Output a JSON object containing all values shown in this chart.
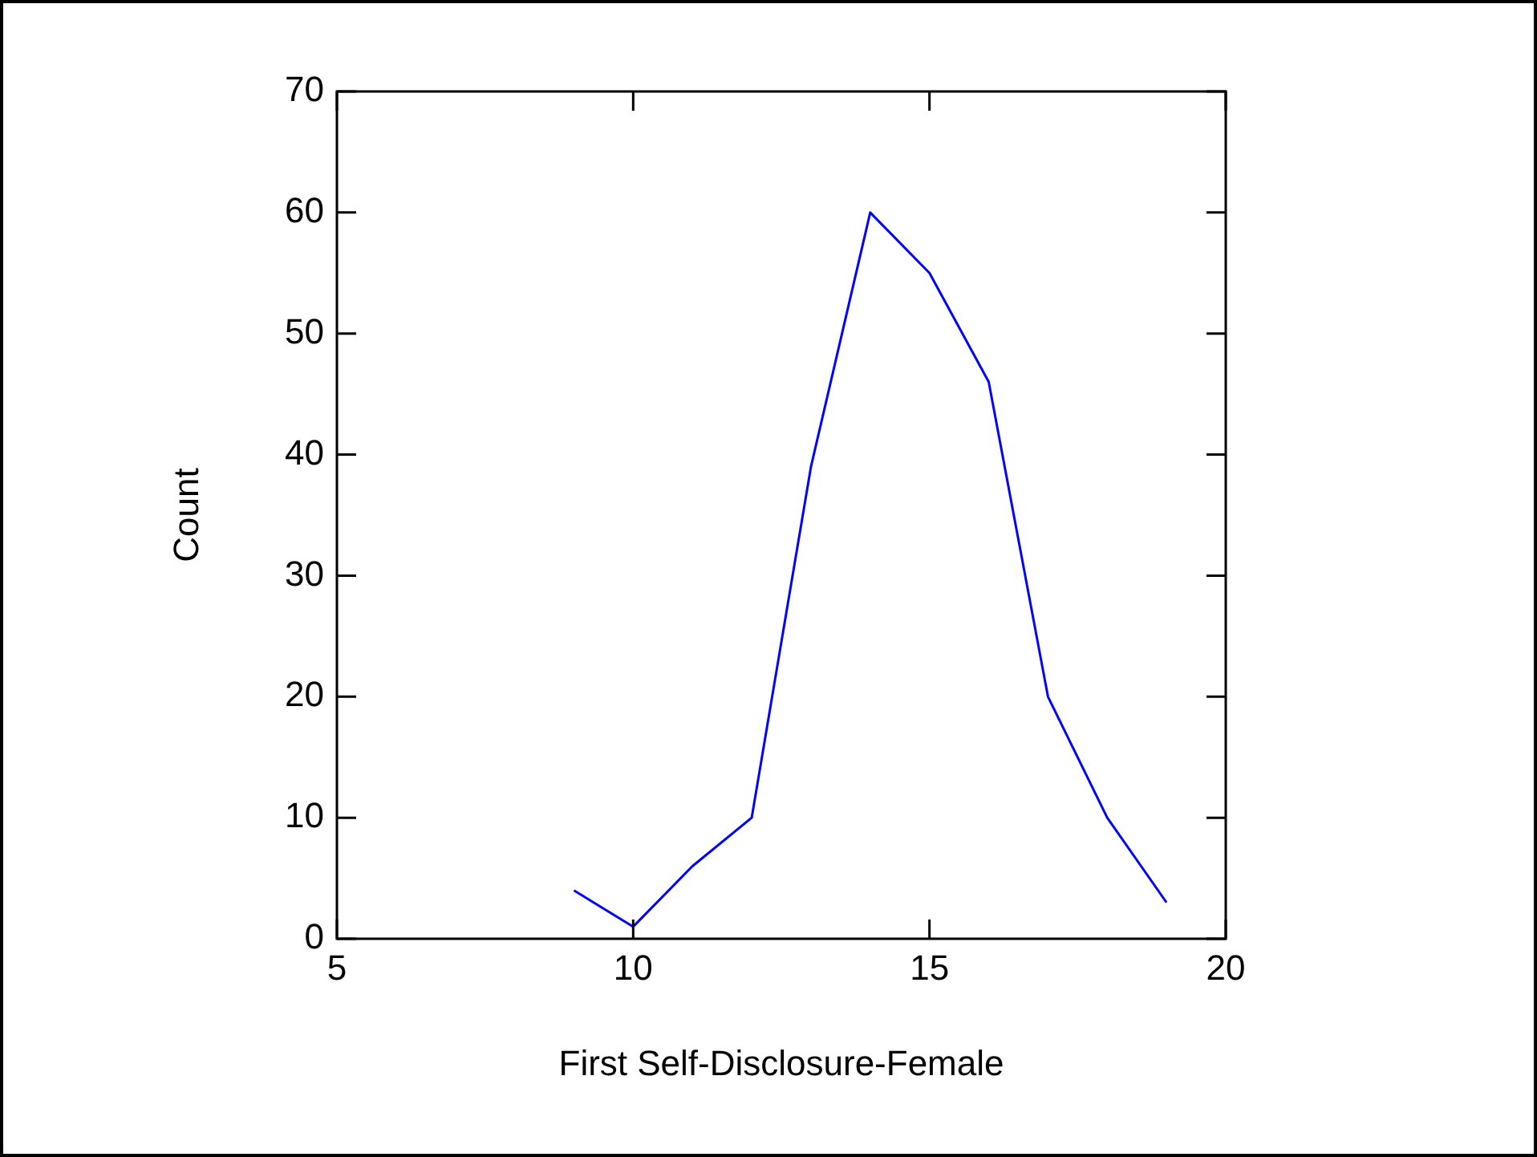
{
  "chart_data": {
    "type": "line",
    "xlabel": "First Self-Disclosure-Female",
    "ylabel": "Count",
    "x": [
      9,
      10,
      11,
      12,
      13,
      14,
      15,
      16,
      17,
      18,
      19
    ],
    "series": [
      {
        "color": "#0000ff",
        "values": [
          4,
          1,
          6,
          10,
          39,
          60,
          55,
          46,
          20,
          10,
          3
        ]
      }
    ],
    "xlim": [
      5,
      20
    ],
    "xticks": [
      5,
      10,
      15,
      20
    ],
    "ylim": [
      0,
      70
    ],
    "yticks": [
      0,
      10,
      20,
      30,
      40,
      50,
      60,
      70
    ],
    "grid": false,
    "legend": false,
    "marker": "none",
    "line_style": "solid"
  }
}
